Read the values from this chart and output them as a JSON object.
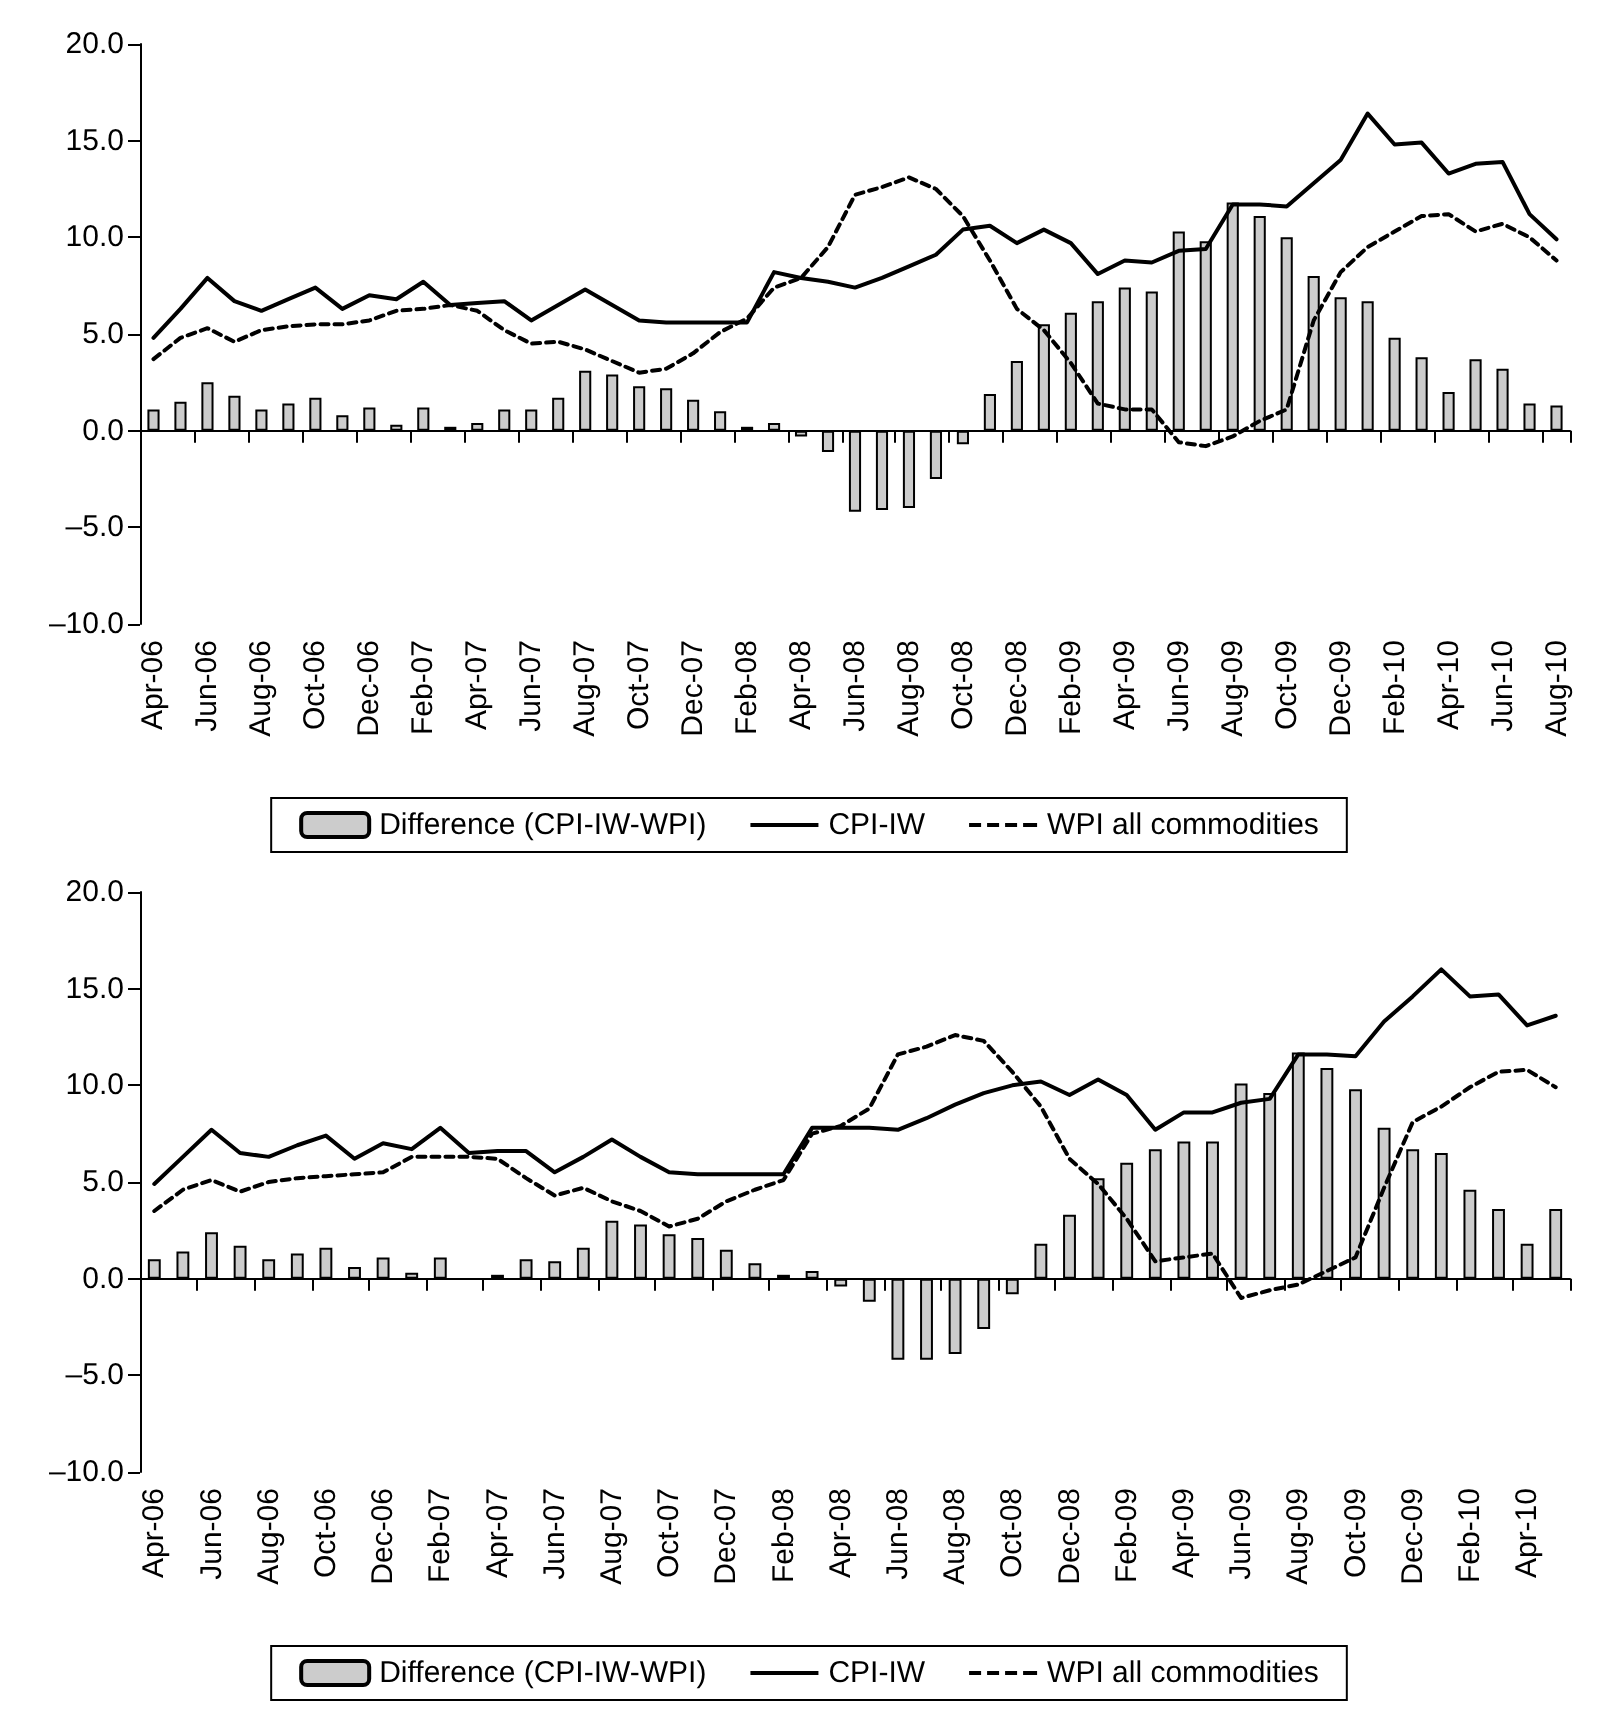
{
  "chart_data": [
    {
      "type": "bar",
      "categories": [
        "Apr-06",
        null,
        "Jun-06",
        null,
        "Aug-06",
        null,
        "Oct-06",
        null,
        "Dec-06",
        null,
        "Feb-07",
        null,
        "Apr-07",
        null,
        "Jun-07",
        null,
        "Aug-07",
        null,
        "Oct-07",
        null,
        "Dec-07",
        null,
        "Feb-08",
        null,
        "Apr-08",
        null,
        "Jun-08",
        null,
        "Aug-08",
        null,
        "Oct-08",
        null,
        "Dec-08",
        null,
        "Feb-09",
        null,
        "Apr-09",
        null,
        "Jun-09",
        null,
        "Aug-09",
        null,
        "Oct-09",
        null,
        "Dec-09",
        null,
        "Feb-10",
        null,
        "Apr-10",
        null,
        "Jun-10",
        null,
        "Aug-10"
      ],
      "series": [
        {
          "name": "Difference (CPI-IW-WPI)",
          "color": "#cccccc",
          "values": [
            1.1,
            1.5,
            2.5,
            1.8,
            1.1,
            1.4,
            1.7,
            0.8,
            1.2,
            0.3,
            1.2,
            0.2,
            0.4,
            1.1,
            1.1,
            1.7,
            3.1,
            2.9,
            2.3,
            2.2,
            1.6,
            1.0,
            0.2,
            0.4,
            -0.3,
            -1.1,
            -4.2,
            -4.1,
            -4.0,
            -2.5,
            -0.7,
            1.9,
            3.6,
            5.5,
            6.1,
            6.7,
            7.4,
            7.2,
            10.3,
            9.8,
            11.8,
            11.1,
            10.0,
            8.0,
            6.9,
            6.7,
            4.8,
            3.8,
            2.0,
            3.7,
            3.2,
            1.4,
            1.3
          ]
        },
        {
          "name": "CPI-IW",
          "type": "line",
          "line_style": "solid",
          "color": "#000000",
          "values": [
            4.8,
            6.3,
            7.9,
            6.7,
            6.2,
            6.8,
            7.4,
            6.3,
            7.0,
            6.8,
            7.7,
            6.5,
            6.6,
            6.7,
            5.7,
            6.5,
            7.3,
            6.5,
            5.7,
            5.6,
            5.6,
            5.6,
            5.6,
            8.2,
            7.9,
            7.7,
            7.4,
            7.9,
            8.5,
            9.1,
            10.4,
            10.6,
            9.7,
            10.4,
            9.7,
            8.1,
            8.8,
            8.7,
            9.3,
            9.4,
            11.7,
            11.7,
            11.6,
            12.8,
            14.0,
            16.4,
            14.8,
            14.9,
            13.3,
            13.8,
            13.9,
            11.2,
            9.9
          ]
        },
        {
          "name": "WPI all commodities",
          "type": "line",
          "line_style": "dashed",
          "color": "#000000",
          "values": [
            3.7,
            4.8,
            5.3,
            4.6,
            5.2,
            5.4,
            5.5,
            5.5,
            5.7,
            6.2,
            6.3,
            6.5,
            6.2,
            5.2,
            4.5,
            4.6,
            4.2,
            3.6,
            3.0,
            3.2,
            4.0,
            5.1,
            5.8,
            7.4,
            7.9,
            9.5,
            12.2,
            12.6,
            13.1,
            12.5,
            11.1,
            8.8,
            6.3,
            5.2,
            3.5,
            1.4,
            1.1,
            1.1,
            -0.6,
            -0.8,
            -0.3,
            0.5,
            1.1,
            5.7,
            8.2,
            9.5,
            10.3,
            11.1,
            11.2,
            10.3,
            10.7,
            10.0,
            8.8
          ]
        }
      ],
      "ylim": [
        -10,
        20
      ],
      "yticks": [
        {
          "value": -10,
          "label": "–10.0"
        },
        {
          "value": -5,
          "label": "–5.0"
        },
        {
          "value": 0,
          "label": "0.0"
        },
        {
          "value": 5,
          "label": "5.0"
        },
        {
          "value": 10,
          "label": "10.0"
        },
        {
          "value": 15,
          "label": "15.0"
        },
        {
          "value": 20,
          "label": "20.0"
        }
      ],
      "legend": "bottom"
    },
    {
      "type": "bar",
      "categories": [
        "Apr-06",
        null,
        "Jun-06",
        null,
        "Aug-06",
        null,
        "Oct-06",
        null,
        "Dec-06",
        null,
        "Feb-07",
        null,
        "Apr-07",
        null,
        "Jun-07",
        null,
        "Aug-07",
        null,
        "Oct-07",
        null,
        "Dec-07",
        null,
        "Feb-08",
        null,
        "Apr-08",
        null,
        "Jun-08",
        null,
        "Aug-08",
        null,
        "Oct-08",
        null,
        "Dec-08",
        null,
        "Feb-09",
        null,
        "Apr-09",
        null,
        "Jun-09",
        null,
        "Aug-09",
        null,
        "Oct-09",
        null,
        "Dec-09",
        null,
        "Feb-10",
        null,
        "Apr-10",
        null
      ],
      "series": [
        {
          "name": "Difference (CPI-IW-WPI)",
          "color": "#cccccc",
          "values": [
            1.0,
            1.4,
            2.4,
            1.7,
            1.0,
            1.3,
            1.6,
            0.6,
            1.1,
            0.3,
            1.1,
            null,
            0.2,
            1.0,
            0.9,
            1.6,
            3.0,
            2.8,
            2.3,
            2.1,
            1.5,
            0.8,
            0.2,
            0.4,
            -0.4,
            -1.2,
            -4.2,
            -4.2,
            -3.9,
            -2.6,
            -0.8,
            1.8,
            3.3,
            5.2,
            6.0,
            6.7,
            7.1,
            7.1,
            10.1,
            9.6,
            11.7,
            10.9,
            9.8,
            7.8,
            6.7,
            6.5,
            4.6,
            3.6,
            1.8,
            3.6
          ]
        },
        {
          "name": "CPI-IW",
          "type": "line",
          "line_style": "solid",
          "color": "#000000",
          "values": [
            4.9,
            6.3,
            7.7,
            6.5,
            6.3,
            6.9,
            7.4,
            6.2,
            7.0,
            6.7,
            7.8,
            6.5,
            6.6,
            6.6,
            5.5,
            6.3,
            7.2,
            6.3,
            5.5,
            5.4,
            5.4,
            5.4,
            5.4,
            7.8,
            7.8,
            7.8,
            7.7,
            8.3,
            9.0,
            9.6,
            10.0,
            10.2,
            9.5,
            10.3,
            9.5,
            7.7,
            8.6,
            8.6,
            9.1,
            9.3,
            11.6,
            11.6,
            11.5,
            13.3,
            14.6,
            16.0,
            14.6,
            14.7,
            13.1,
            13.6
          ]
        },
        {
          "name": "WPI all commodities",
          "type": "line",
          "line_style": "dashed",
          "color": "#000000",
          "values": [
            3.5,
            4.6,
            5.1,
            4.5,
            5.0,
            5.2,
            5.3,
            5.4,
            5.5,
            6.3,
            6.3,
            6.3,
            6.2,
            5.2,
            4.3,
            4.7,
            4.0,
            3.5,
            2.7,
            3.1,
            4.0,
            4.6,
            5.1,
            7.5,
            7.9,
            8.8,
            11.6,
            12.0,
            12.6,
            12.3,
            10.7,
            8.9,
            6.2,
            4.9,
            3.1,
            0.9,
            1.1,
            1.3,
            -1.0,
            -0.6,
            -0.3,
            0.4,
            1.1,
            4.7,
            8.1,
            8.9,
            9.9,
            10.7,
            10.8,
            9.9
          ]
        }
      ],
      "ylim": [
        -10,
        20
      ],
      "yticks": [
        {
          "value": -10,
          "label": "–10.0"
        },
        {
          "value": -5,
          "label": "–5.0"
        },
        {
          "value": 0,
          "label": "0.0"
        },
        {
          "value": 5,
          "label": "5.0"
        },
        {
          "value": 10,
          "label": "10.0"
        },
        {
          "value": 15,
          "label": "15.0"
        },
        {
          "value": 20,
          "label": "20.0"
        }
      ],
      "legend": "bottom"
    }
  ]
}
